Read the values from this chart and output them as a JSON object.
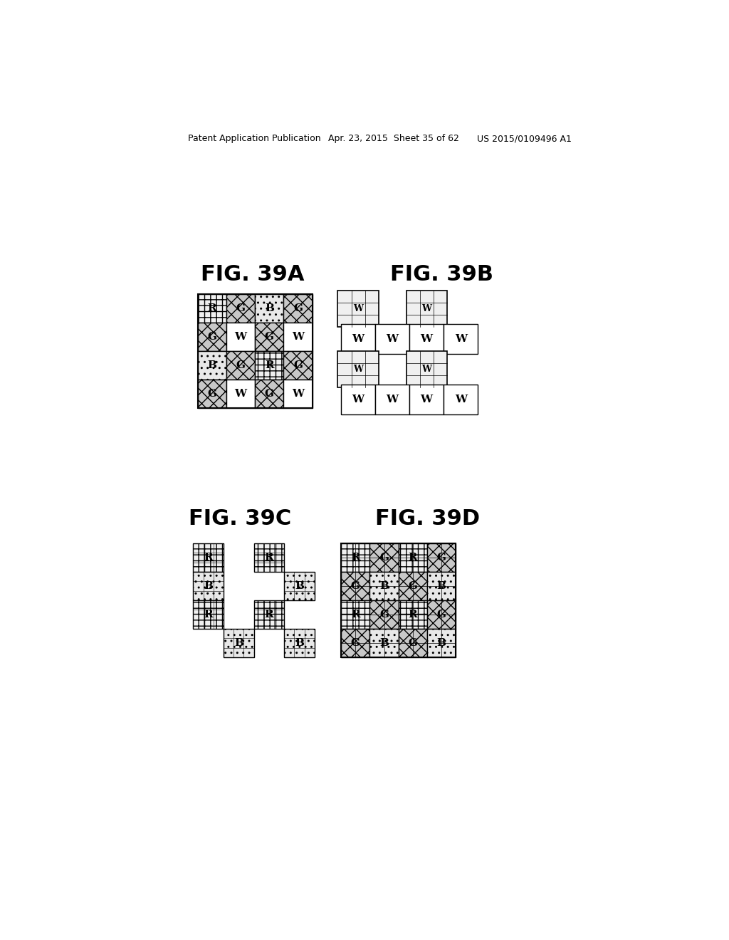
{
  "header_left": "Patent Application Publication",
  "header_mid": "Apr. 23, 2015  Sheet 35 of 62",
  "header_right": "US 2015/0109496 A1",
  "fig39A_title": "FIG. 39A",
  "fig39B_title": "FIG. 39B",
  "fig39C_title": "FIG. 39C",
  "fig39D_title": "FIG. 39D",
  "fig39A_grid": [
    [
      "R",
      "G",
      "B",
      "G"
    ],
    [
      "G",
      "W",
      "G",
      "W"
    ],
    [
      "B",
      "G",
      "R",
      "G"
    ],
    [
      "G",
      "W",
      "G",
      "W"
    ]
  ],
  "fig39B_cells": [
    [
      0,
      0,
      "W",
      true
    ],
    [
      0,
      2,
      "W",
      true
    ],
    [
      1,
      0,
      "W",
      false
    ],
    [
      1,
      1,
      "W",
      false
    ],
    [
      1,
      2,
      "W",
      false
    ],
    [
      1,
      3,
      "W",
      false
    ],
    [
      2,
      0,
      "W",
      true
    ],
    [
      2,
      2,
      "W",
      true
    ],
    [
      3,
      0,
      "W",
      false
    ],
    [
      3,
      1,
      "W",
      false
    ],
    [
      3,
      2,
      "W",
      false
    ],
    [
      3,
      3,
      "W",
      false
    ]
  ],
  "fig39C_cells": [
    [
      0,
      0,
      "R"
    ],
    [
      0,
      2,
      "R"
    ],
    [
      1,
      0,
      "B"
    ],
    [
      1,
      3,
      "B"
    ],
    [
      2,
      0,
      "R"
    ],
    [
      2,
      2,
      "R"
    ],
    [
      3,
      1,
      "B"
    ],
    [
      3,
      3,
      "B"
    ]
  ],
  "fig39D_grid": [
    [
      "R",
      "G",
      "R",
      "G"
    ],
    [
      "G",
      "B",
      "G",
      "B"
    ],
    [
      "R",
      "G",
      "R",
      "G"
    ],
    [
      "G",
      "B",
      "G",
      "B"
    ]
  ]
}
